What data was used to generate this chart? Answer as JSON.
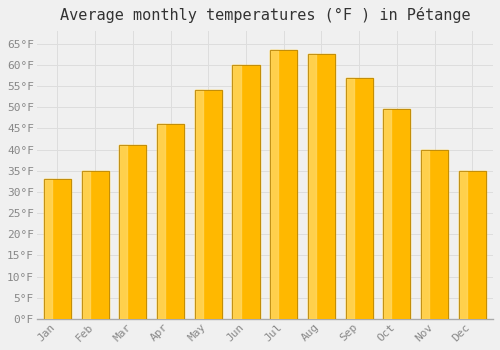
{
  "title": "Average monthly temperatures (°F ) in Pétange",
  "months": [
    "Jan",
    "Feb",
    "Mar",
    "Apr",
    "May",
    "Jun",
    "Jul",
    "Aug",
    "Sep",
    "Oct",
    "Nov",
    "Dec"
  ],
  "values": [
    33,
    35,
    41,
    46,
    54,
    60,
    63.5,
    62.5,
    57,
    49.5,
    40,
    35
  ],
  "bar_color_center": "#FFB800",
  "bar_color_light": "#FFD966",
  "bar_color_edge": "#CC8800",
  "background_color": "#f0f0f0",
  "plot_bg_color": "#f0f0f0",
  "yticks": [
    0,
    5,
    10,
    15,
    20,
    25,
    30,
    35,
    40,
    45,
    50,
    55,
    60,
    65
  ],
  "ylim": [
    0,
    68
  ],
  "grid_color": "#dddddd",
  "title_fontsize": 11,
  "tick_fontsize": 8,
  "font_family": "monospace"
}
